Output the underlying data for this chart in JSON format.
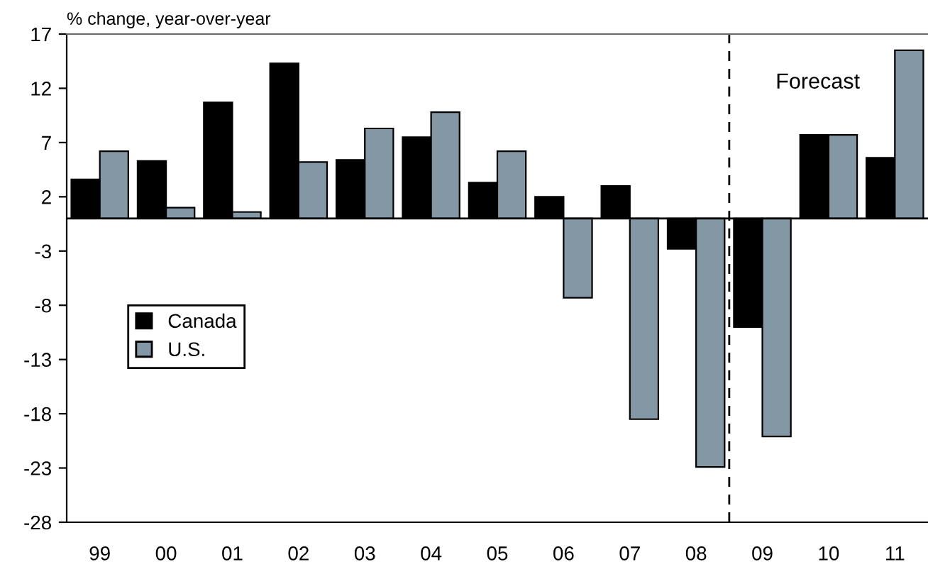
{
  "chart_data": {
    "type": "bar",
    "ylabel": "% change, year-over-year",
    "categories": [
      "99",
      "00",
      "01",
      "02",
      "03",
      "04",
      "05",
      "06",
      "07",
      "08",
      "09",
      "10",
      "11"
    ],
    "series": [
      {
        "name": "Canada",
        "color": "#000000",
        "values": [
          3.6,
          5.3,
          10.7,
          14.3,
          5.4,
          7.5,
          3.3,
          2.0,
          3.0,
          -2.8,
          -10.0,
          7.7,
          5.6
        ]
      },
      {
        "name": "U.S.",
        "color": "#8497a4",
        "values": [
          6.2,
          1.0,
          0.6,
          5.2,
          8.3,
          9.8,
          6.2,
          -7.3,
          -18.5,
          -22.9,
          -20.1,
          7.7,
          15.5
        ]
      }
    ],
    "ylim": [
      -28,
      17
    ],
    "yticks": [
      17,
      12,
      7,
      2,
      -3,
      -8,
      -13,
      -18,
      -23,
      -28
    ],
    "ref_lines": [
      {
        "axis": "y",
        "value": 0,
        "label": null,
        "color": "#000000",
        "line_style": "solid"
      }
    ],
    "annotations": [
      "Forecast"
    ],
    "grid": false,
    "legend": "left"
  }
}
